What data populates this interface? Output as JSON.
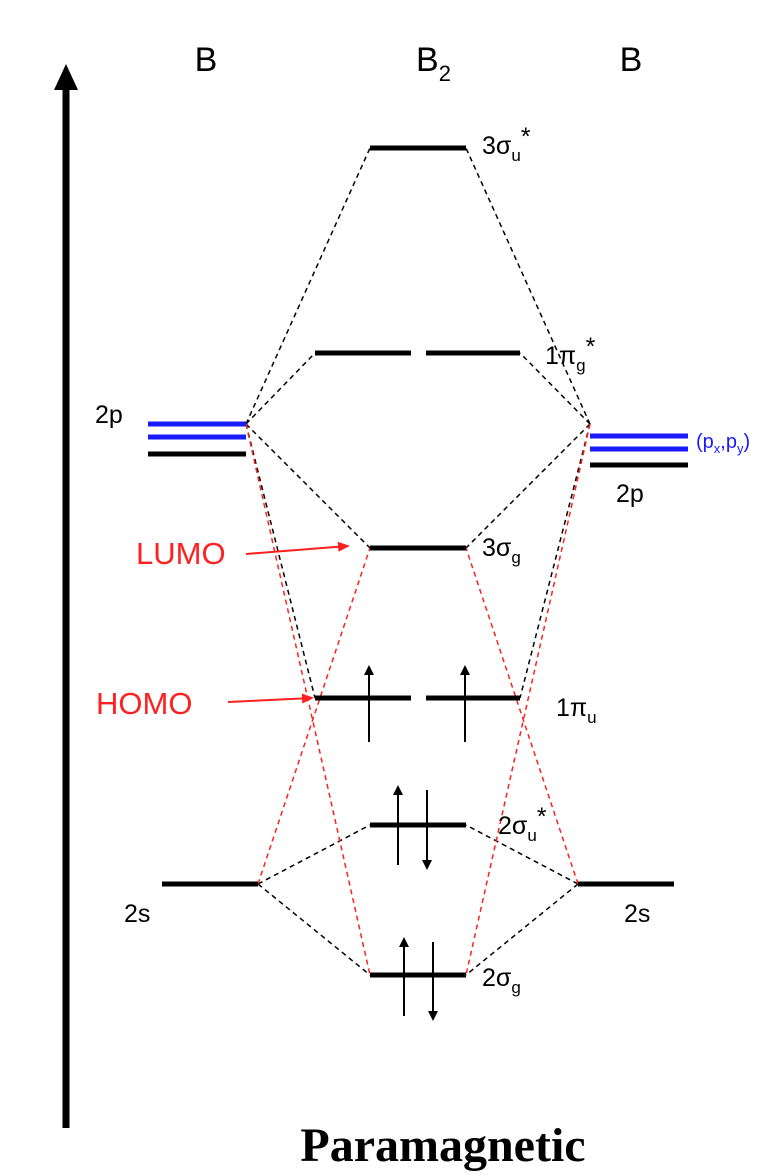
{
  "header": {
    "left_atom": "B",
    "molecule": "B",
    "molecule_sub": "2",
    "right_atom": "B"
  },
  "atomic_orbitals": {
    "left_2p": "2p",
    "right_2p": "2p",
    "right_2p_components": {
      "open": "(p",
      "x": "x",
      "comma": ",p",
      "y": "y",
      "close": ")"
    },
    "left_2s": "2s",
    "right_2s": "2s"
  },
  "molecular_orbitals": {
    "sigma3u": {
      "num": "3",
      "sym": "σ",
      "sub": "u",
      "star": "*"
    },
    "pi1g": {
      "num": "1",
      "sym": "π",
      "sub": "g",
      "star": "*"
    },
    "sigma3g": {
      "num": "3",
      "sym": "σ",
      "sub": "g"
    },
    "pi1u": {
      "num": "1",
      "sym": "π",
      "sub": "u"
    },
    "sigma2u": {
      "num": "2",
      "sym": "σ",
      "sub": "u",
      "star": "*"
    },
    "sigma2g": {
      "num": "2",
      "sym": "σ",
      "sub": "g"
    }
  },
  "annotations": {
    "lumo": "LUMO",
    "homo": "HOMO"
  },
  "footer": "Paramagnetic",
  "colors": {
    "line": "#000000",
    "red": "#ff2020",
    "blue": "#1a1aff"
  }
}
